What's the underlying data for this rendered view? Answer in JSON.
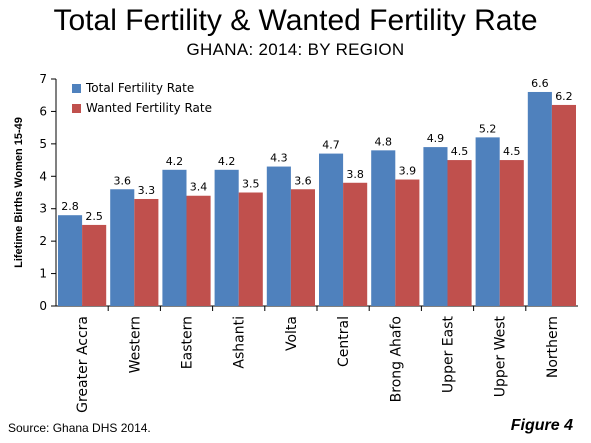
{
  "header": {
    "title": "Total Fertility & Wanted Fertility Rate",
    "subtitle": "GHANA: 2014: BY REGION"
  },
  "footer": {
    "source": "Source: Ghana DHS 2014.",
    "figure_label": "Figure 4"
  },
  "colors": {
    "total": "#4F81BD",
    "wanted": "#C0504D"
  },
  "chart_data": {
    "type": "bar",
    "title": "Total Fertility & Wanted Fertility Rate",
    "subtitle": "GHANA: 2014: BY REGION",
    "xlabel": "",
    "ylabel": "Lifetime Births Women 15-49",
    "ylim": [
      0,
      7
    ],
    "yticks": [
      0,
      1,
      2,
      3,
      4,
      5,
      6,
      7
    ],
    "grid": false,
    "legend_position": "top-left",
    "categories": [
      "Greater Accra",
      "Western",
      "Eastern",
      "Ashanti",
      "Volta",
      "Central",
      "Brong Ahafo",
      "Upper East",
      "Upper West",
      "Northern"
    ],
    "series": [
      {
        "name": "Total Fertility Rate",
        "values": [
          2.8,
          3.6,
          4.2,
          4.2,
          4.3,
          4.7,
          4.8,
          4.9,
          5.2,
          6.6
        ]
      },
      {
        "name": "Wanted Fertility Rate",
        "values": [
          2.5,
          3.3,
          3.4,
          3.5,
          3.6,
          3.8,
          3.9,
          4.5,
          4.5,
          6.2
        ]
      }
    ]
  }
}
